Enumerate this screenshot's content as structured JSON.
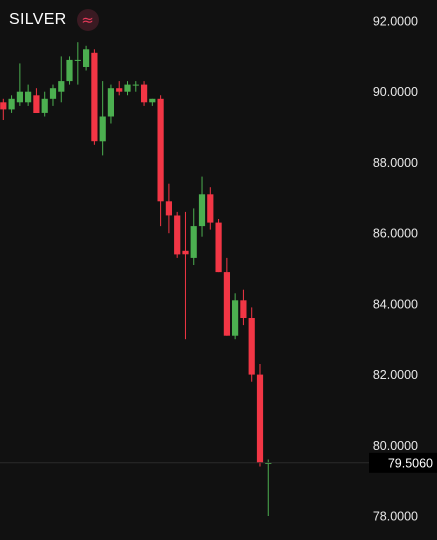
{
  "header": {
    "symbol": "SILVER",
    "icon": "wave-icon",
    "icon_glyph": "≈"
  },
  "colors": {
    "background": "#111111",
    "up": "#4caf50",
    "down": "#f23645",
    "text": "#e8e8e8",
    "price_label_bg": "#000000"
  },
  "chart_data": {
    "type": "candlestick",
    "title": "SILVER",
    "y_ticks": [
      "92.0000",
      "90.0000",
      "88.0000",
      "86.0000",
      "84.0000",
      "82.0000",
      "80.0000",
      "78.0000"
    ],
    "ylim": [
      77.6,
      92.4
    ],
    "grid": false,
    "current_price": 79.506,
    "current_price_label": "79.5060",
    "candles": [
      {
        "o": 89.7,
        "h": 89.8,
        "l": 89.2,
        "c": 89.5
      },
      {
        "o": 89.5,
        "h": 89.9,
        "l": 89.4,
        "c": 89.8
      },
      {
        "o": 89.7,
        "h": 90.8,
        "l": 89.6,
        "c": 90.0
      },
      {
        "o": 89.7,
        "h": 90.2,
        "l": 89.6,
        "c": 90.0
      },
      {
        "o": 89.9,
        "h": 90.1,
        "l": 89.4,
        "c": 89.4
      },
      {
        "o": 89.4,
        "h": 90.0,
        "l": 89.3,
        "c": 89.8
      },
      {
        "o": 89.8,
        "h": 90.2,
        "l": 89.6,
        "c": 90.1
      },
      {
        "o": 90.0,
        "h": 91.0,
        "l": 89.7,
        "c": 90.3
      },
      {
        "o": 90.3,
        "h": 91.0,
        "l": 90.2,
        "c": 90.9
      },
      {
        "o": 90.9,
        "h": 91.4,
        "l": 90.2,
        "c": 90.9
      },
      {
        "o": 90.7,
        "h": 91.3,
        "l": 90.6,
        "c": 91.2
      },
      {
        "o": 91.1,
        "h": 91.2,
        "l": 88.5,
        "c": 88.6
      },
      {
        "o": 88.6,
        "h": 90.3,
        "l": 88.2,
        "c": 89.3
      },
      {
        "o": 89.3,
        "h": 90.2,
        "l": 89.1,
        "c": 90.1
      },
      {
        "o": 90.1,
        "h": 90.3,
        "l": 89.9,
        "c": 90.0
      },
      {
        "o": 90.0,
        "h": 90.3,
        "l": 89.9,
        "c": 90.2
      },
      {
        "o": 90.2,
        "h": 90.3,
        "l": 90.0,
        "c": 90.2
      },
      {
        "o": 90.2,
        "h": 90.3,
        "l": 89.6,
        "c": 89.7
      },
      {
        "o": 89.7,
        "h": 89.8,
        "l": 89.6,
        "c": 89.8
      },
      {
        "o": 89.8,
        "h": 89.9,
        "l": 86.2,
        "c": 86.9
      },
      {
        "o": 86.9,
        "h": 87.4,
        "l": 86.0,
        "c": 86.5
      },
      {
        "o": 86.5,
        "h": 86.6,
        "l": 85.3,
        "c": 85.4
      },
      {
        "o": 85.5,
        "h": 86.6,
        "l": 83.0,
        "c": 85.4
      },
      {
        "o": 85.3,
        "h": 86.7,
        "l": 85.1,
        "c": 86.2
      },
      {
        "o": 86.2,
        "h": 87.6,
        "l": 85.9,
        "c": 87.1
      },
      {
        "o": 87.1,
        "h": 87.3,
        "l": 86.1,
        "c": 86.3
      },
      {
        "o": 86.3,
        "h": 86.4,
        "l": 84.9,
        "c": 84.9
      },
      {
        "o": 84.9,
        "h": 85.3,
        "l": 83.1,
        "c": 83.1
      },
      {
        "o": 83.1,
        "h": 84.3,
        "l": 83.0,
        "c": 84.1
      },
      {
        "o": 84.1,
        "h": 84.4,
        "l": 83.4,
        "c": 83.6
      },
      {
        "o": 83.6,
        "h": 83.9,
        "l": 81.8,
        "c": 82.0
      },
      {
        "o": 82.0,
        "h": 82.3,
        "l": 79.4,
        "c": 79.5
      },
      {
        "o": 79.5,
        "h": 79.6,
        "l": 78.0,
        "c": 79.5
      }
    ]
  }
}
